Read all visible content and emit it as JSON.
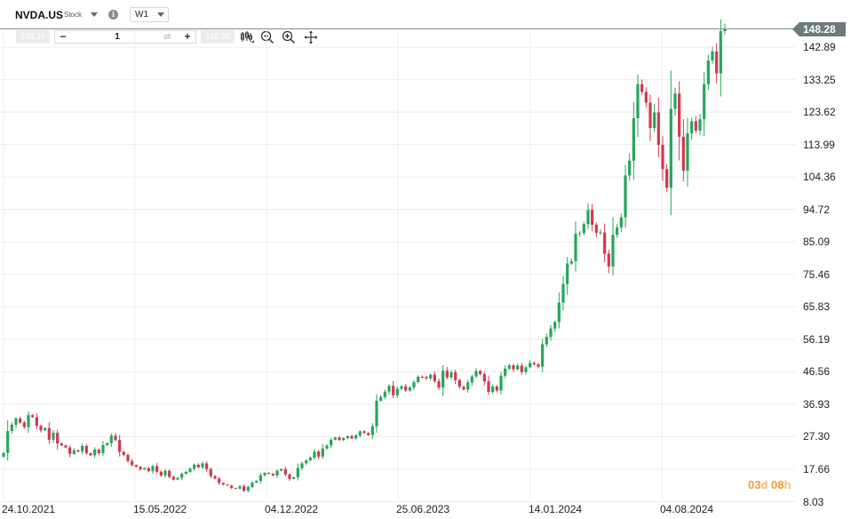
{
  "header": {
    "symbol": "NVDA.US",
    "instrument_type": "Stock",
    "timeframe": "W1"
  },
  "order_bar": {
    "sell_price": "148.28",
    "buy_price": "148.30",
    "quantity": "1"
  },
  "current_price": "148.28",
  "countdown": {
    "days": "03",
    "days_unit": "d",
    "hours": "08",
    "hours_unit": "h"
  },
  "colors": {
    "up": "#26a65b",
    "down": "#d2384f",
    "grid": "#ececec",
    "price_line": "#7f8c8d",
    "price_tag": "#6d7a7b",
    "countdown": "#f39c33"
  },
  "chart_data": {
    "type": "candlestick",
    "series_label": "NVDA.US W1",
    "y_axis_ticks": [
      "142.89",
      "133.25",
      "123.62",
      "113.99",
      "104.36",
      "94.72",
      "85.09",
      "75.46",
      "65.83",
      "56.19",
      "46.56",
      "36.93",
      "27.30",
      "17.66",
      "8.03"
    ],
    "x_axis_ticks": [
      "24.10.2021",
      "15.05.2022",
      "04.12.2022",
      "25.06.2023",
      "14.01.2024",
      "04.08.2024"
    ],
    "ylim": [
      8.03,
      150.3
    ],
    "grid": true,
    "weekly_closes": [
      22.5,
      29.0,
      30.9,
      32.7,
      31.5,
      30.2,
      33.7,
      33.1,
      30.5,
      29.2,
      29.9,
      26.4,
      28.5,
      25.3,
      24.7,
      24.1,
      22.2,
      23.3,
      22.9,
      24.6,
      22.4,
      21.8,
      23.5,
      22.4,
      24.8,
      25.4,
      27.6,
      26.3,
      22.8,
      21.9,
      20.1,
      18.9,
      18.4,
      17.6,
      18.0,
      17.1,
      18.6,
      16.9,
      15.8,
      17.2,
      15.4,
      14.6,
      15.1,
      16.3,
      16.9,
      17.8,
      19.0,
      18.2,
      19.4,
      17.7,
      15.6,
      14.9,
      13.6,
      13.1,
      12.8,
      12.1,
      11.9,
      12.6,
      11.3,
      12.4,
      13.7,
      14.2,
      15.9,
      16.6,
      16.3,
      15.8,
      17.2,
      17.7,
      16.1,
      14.8,
      15.3,
      18.0,
      19.4,
      20.3,
      21.1,
      22.9,
      21.4,
      23.8,
      24.7,
      26.4,
      27.1,
      26.3,
      26.9,
      27.5,
      26.8,
      27.7,
      28.9,
      28.4,
      27.8,
      30.4,
      38.0,
      39.1,
      40.7,
      42.4,
      39.6,
      41.5,
      42.3,
      41.0,
      41.9,
      43.5,
      45.1,
      45.0,
      44.6,
      45.7,
      43.8,
      41.9,
      46.9,
      44.9,
      46.4,
      44.1,
      42.1,
      41.3,
      43.4,
      45.2,
      46.8,
      45.9,
      43.7,
      40.6,
      42.2,
      41.0,
      45.4,
      47.5,
      48.5,
      47.3,
      48.4,
      46.5,
      47.9,
      49.2,
      48.8,
      48.1,
      54.7,
      56.9,
      59.4,
      61.3,
      67.1,
      72.6,
      78.7,
      79.4,
      87.5,
      87.7,
      90.4,
      94.6,
      90.2,
      87.8,
      87.9,
      81.6,
      77.8,
      87.2,
      89.4,
      92.4,
      104.8,
      109.2,
      121.8,
      131.9,
      129.6,
      126.4,
      118.9,
      123.5,
      113.9,
      106.7,
      101.2,
      124.6,
      129.1,
      116.3,
      106.2,
      117.3,
      120.9,
      118.1,
      121.5,
      131.9,
      138.9,
      141.6,
      135.1,
      147.6,
      148.28
    ]
  }
}
